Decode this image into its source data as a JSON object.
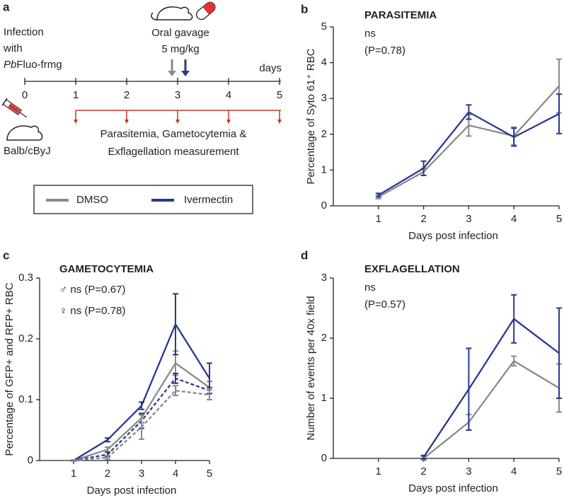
{
  "diagram": {
    "panel": "a",
    "infection": [
      "Infection",
      "with"
    ],
    "strain_italic": "Pb",
    "strain": "Fluo-frmg",
    "treatment": [
      "Oral gavage",
      "5 mg/kg"
    ],
    "axis_label": "days",
    "timeline_labels": [
      0,
      1,
      2,
      3,
      4,
      5
    ],
    "mouse": "Balb/cByJ",
    "measurement": [
      "Parasitemia, Gametocytemia &",
      "Exflagellation measurement"
    ]
  },
  "chart_data": [
    {
      "type": "line",
      "panel": "b",
      "title": "PARASITEMIA",
      "annotations": [
        "ns",
        "(P=0.78)"
      ],
      "x_label": "Days post infection",
      "y_label": "Percentage of Syto 61⁺ RBC",
      "x": [
        1,
        2,
        3,
        4,
        5
      ],
      "xlim": [
        0,
        5
      ],
      "xticks": [
        1,
        2,
        3,
        4,
        5
      ],
      "ylim": [
        0,
        5
      ],
      "yticks": [
        0,
        1,
        2,
        3,
        4,
        5
      ],
      "series": [
        {
          "name": "DMSO",
          "color": "#8a8a8a",
          "values": [
            0.25,
            0.95,
            2.25,
            1.95,
            3.35
          ],
          "errors": [
            0.05,
            0.1,
            0.3,
            0.25,
            0.75
          ]
        },
        {
          "name": "Ivermectin",
          "color": "#27398f",
          "values": [
            0.3,
            1.05,
            2.62,
            1.92,
            2.57
          ],
          "errors": [
            0.05,
            0.2,
            0.2,
            0.25,
            0.55
          ]
        }
      ]
    },
    {
      "type": "line",
      "panel": "c",
      "title": "GAMETOCYTEMIA",
      "annotations": [
        "♂ ns  (P=0.67)",
        "♀ ns  (P=0.78)"
      ],
      "x_label": "Days post infection",
      "y_label": "Percentage of GFP+ and RFP+ RBC",
      "x": [
        1,
        2,
        3,
        4,
        5
      ],
      "xlim": [
        0,
        5
      ],
      "xticks": [
        1,
        2,
        3,
        4,
        5
      ],
      "ylim": [
        0,
        0.3
      ],
      "yticks": [
        0,
        0.1,
        0.2,
        0.3
      ],
      "series": [
        {
          "color": "#8a8a8a",
          "dash": false,
          "values": [
            0,
            0.018,
            0.07,
            0.16,
            0.12
          ],
          "errors": [
            0.001,
            0.004,
            0.008,
            0.02,
            0.01
          ]
        },
        {
          "color": "#27398f",
          "dash": false,
          "values": [
            0,
            0.034,
            0.09,
            0.224,
            0.135
          ],
          "errors": [
            0.001,
            0.003,
            0.006,
            0.05,
            0.025
          ]
        },
        {
          "color": "#27398f",
          "dash": true,
          "values": [
            0,
            0.01,
            0.065,
            0.135,
            0.115
          ],
          "errors": [
            0.001,
            0.004,
            0.012,
            0.008,
            0.005
          ]
        },
        {
          "color": "#8a8a8a",
          "dash": true,
          "values": [
            0,
            0.005,
            0.055,
            0.115,
            0.108
          ],
          "errors": [
            0.001,
            0.003,
            0.02,
            0.008,
            0.008
          ]
        }
      ]
    },
    {
      "type": "line",
      "panel": "d",
      "title": "EXFLAGELLATION",
      "annotations": [
        "ns",
        "(P=0.57)"
      ],
      "x_label": "Days post infection",
      "y_label": "Number of events per 40x field",
      "x": [
        1,
        2,
        3,
        4,
        5
      ],
      "xlim": [
        0,
        5
      ],
      "xticks": [
        1,
        2,
        3,
        4,
        5
      ],
      "ylim": [
        0,
        3
      ],
      "yticks": [
        0,
        1,
        2,
        3
      ],
      "series": [
        {
          "name": "DMSO",
          "color": "#8a8a8a",
          "values": [
            null,
            0,
            0.6,
            1.62,
            1.17
          ],
          "errors": [
            null,
            0.03,
            0.13,
            0.08,
            0.4
          ]
        },
        {
          "name": "Ivermectin",
          "color": "#27398f",
          "values": [
            null,
            0.02,
            1.15,
            2.32,
            1.75
          ],
          "errors": [
            null,
            0.03,
            0.68,
            0.4,
            0.75
          ]
        }
      ]
    }
  ]
}
